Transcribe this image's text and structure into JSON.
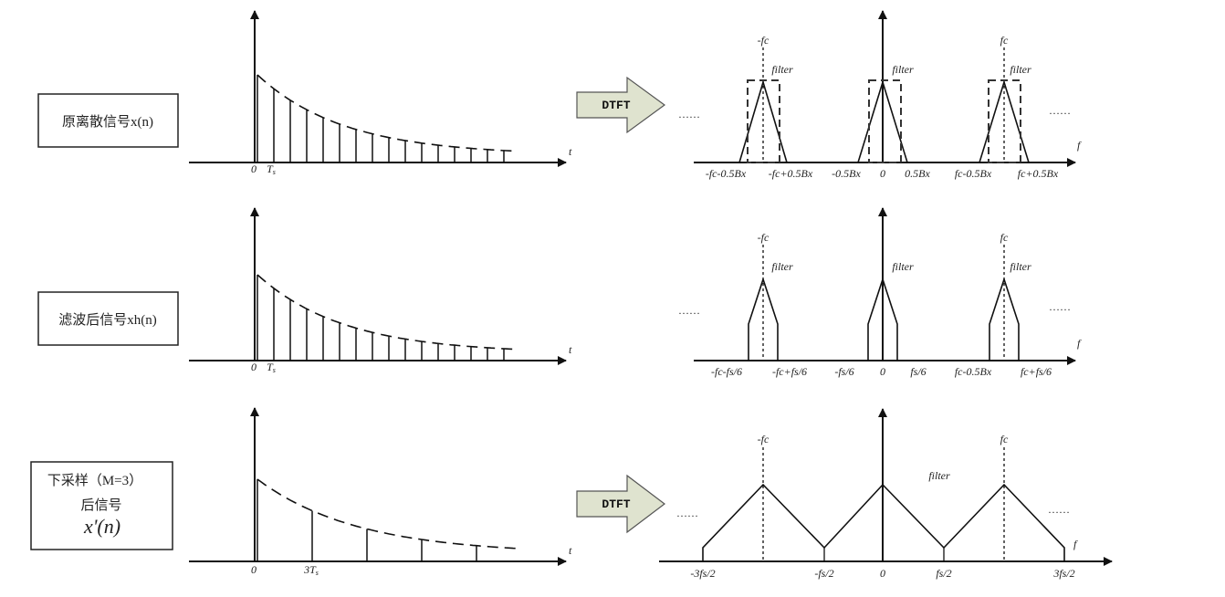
{
  "rows": [
    {
      "label_lines": [
        "原离散信号x(n)"
      ],
      "time_axis": {
        "origin": "0",
        "tick": "T",
        "tick_sub": "s",
        "end": "t"
      },
      "has_dtft": true,
      "freq_axis": {
        "end": "f",
        "ellipsis_left": "……",
        "ellipsis_right": "……",
        "peak_labels": [
          "-fc",
          "fc"
        ],
        "filter_labels": [
          "filter",
          "filter",
          "filter"
        ],
        "ticks": [
          "-fc-0.5Bx",
          "-fc+0.5Bx",
          "-0.5Bx",
          "0",
          "0.5Bx",
          "fc-0.5Bx",
          "fc+0.5Bx"
        ]
      }
    },
    {
      "label_lines": [
        "滤波后信号xh(n)"
      ],
      "time_axis": {
        "origin": "0",
        "tick": "T",
        "tick_sub": "s",
        "end": "t"
      },
      "has_dtft": false,
      "freq_axis": {
        "end": "f",
        "ellipsis_left": "……",
        "ellipsis_right": "……",
        "peak_labels": [
          "-fc",
          "fc"
        ],
        "filter_labels": [
          "filter",
          "filter",
          "filter"
        ],
        "ticks": [
          "-fc-fs/6",
          "-fc+fs/6",
          "-fs/6",
          "0",
          "fs/6",
          "fc-0.5Bx",
          "fc+fs/6"
        ]
      }
    },
    {
      "label_lines": [
        "下采样（M=3）",
        "后信号",
        "x'(n)"
      ],
      "time_axis": {
        "origin": "0",
        "tick": "3T",
        "tick_sub": "s",
        "end": "t"
      },
      "has_dtft": true,
      "freq_axis": {
        "end": "f",
        "ellipsis_left": "……",
        "ellipsis_right": "……",
        "peak_labels": [
          "-fc",
          "fc"
        ],
        "filter_labels": [
          "filter"
        ],
        "ticks": [
          "-3fs/2",
          "-fs/2",
          "0",
          "fs/2",
          "3fs/2"
        ]
      }
    }
  ],
  "dtft_label": "DTFT"
}
